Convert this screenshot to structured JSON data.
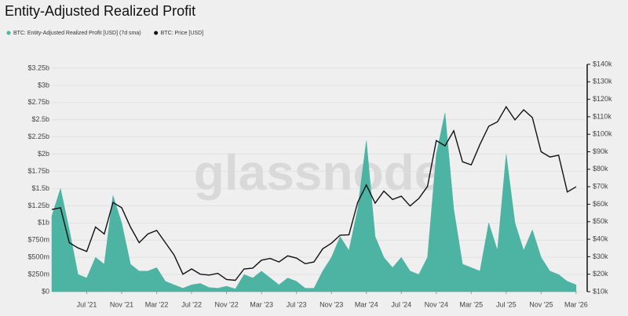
{
  "chart_data": {
    "type": "area-line",
    "title": "Entity-Adjusted Realized Profit",
    "watermark": "glassnode",
    "x": [
      "2021-03",
      "2021-04",
      "2021-05",
      "2021-06",
      "2021-07",
      "2021-08",
      "2021-09",
      "2021-10",
      "2021-11",
      "2021-12",
      "2022-01",
      "2022-02",
      "2022-03",
      "2022-04",
      "2022-05",
      "2022-06",
      "2022-07",
      "2022-08",
      "2022-09",
      "2022-10",
      "2022-11",
      "2022-12",
      "2023-01",
      "2023-02",
      "2023-03",
      "2023-04",
      "2023-05",
      "2023-06",
      "2023-07",
      "2023-08",
      "2023-09",
      "2023-10",
      "2023-11",
      "2023-12",
      "2024-01",
      "2024-02",
      "2024-03",
      "2024-04",
      "2024-05",
      "2024-06",
      "2024-07",
      "2024-08",
      "2024-09",
      "2024-10",
      "2024-11",
      "2024-12",
      "2025-01",
      "2025-02",
      "2025-03",
      "2025-04",
      "2025-05",
      "2025-06",
      "2025-07",
      "2025-08",
      "2025-09",
      "2025-10",
      "2025-11",
      "2025-12",
      "2026-01",
      "2026-02",
      "2026-03"
    ],
    "series": [
      {
        "name": "BTC: Entity-Adjusted Realized Profit [USD] (7d sma)",
        "color": "#4db3a2",
        "values": [
          1100000000,
          1500000000,
          900000000,
          250000000,
          200000000,
          500000000,
          400000000,
          1400000000,
          1000000000,
          400000000,
          300000000,
          300000000,
          350000000,
          150000000,
          100000000,
          50000000,
          100000000,
          120000000,
          60000000,
          50000000,
          80000000,
          40000000,
          250000000,
          200000000,
          300000000,
          200000000,
          100000000,
          200000000,
          150000000,
          50000000,
          50000000,
          300000000,
          500000000,
          800000000,
          600000000,
          1200000000,
          2200000000,
          800000000,
          500000000,
          350000000,
          500000000,
          300000000,
          250000000,
          500000000,
          2000000000,
          2600000000,
          1200000000,
          400000000,
          350000000,
          300000000,
          1000000000,
          600000000,
          2000000000,
          1000000000,
          600000000,
          900000000,
          500000000,
          300000000,
          250000000,
          150000000,
          100000000
        ]
      },
      {
        "name": "BTC: Price [USD]",
        "color": "#111111",
        "axis": "y2",
        "values": [
          57000,
          58000,
          38000,
          35000,
          33000,
          47000,
          43000,
          61000,
          58000,
          47000,
          38000,
          43000,
          45000,
          38000,
          31000,
          20000,
          23000,
          20000,
          19500,
          20500,
          17000,
          16500,
          23000,
          23500,
          28000,
          29000,
          27000,
          30500,
          29200,
          26000,
          27000,
          34500,
          37700,
          42300,
          42500,
          61000,
          71000,
          60600,
          67500,
          62700,
          64600,
          59000,
          63300,
          70200,
          96400,
          93400,
          102000,
          84300,
          82500,
          94200,
          104600,
          107100,
          115700,
          108200,
          114000,
          109500,
          90000,
          87000,
          88000,
          67000,
          70000
        ]
      }
    ],
    "xlim": [
      "2021-03",
      "2026-04"
    ],
    "xticks": [
      {
        "value": "2021-07",
        "label": "Jul '21"
      },
      {
        "value": "2021-11",
        "label": "Nov '21"
      },
      {
        "value": "2022-03",
        "label": "Mar '22"
      },
      {
        "value": "2022-07",
        "label": "Jul '22"
      },
      {
        "value": "2022-11",
        "label": "Nov '22"
      },
      {
        "value": "2023-03",
        "label": "Mar '23"
      },
      {
        "value": "2023-07",
        "label": "Jul '23"
      },
      {
        "value": "2023-11",
        "label": "Nov '23"
      },
      {
        "value": "2024-03",
        "label": "Mar '24"
      },
      {
        "value": "2024-07",
        "label": "Jul '24"
      },
      {
        "value": "2024-11",
        "label": "Nov '24"
      },
      {
        "value": "2025-03",
        "label": "Mar '25"
      },
      {
        "value": "2025-07",
        "label": "Jul '25"
      },
      {
        "value": "2025-11",
        "label": "Nov '25"
      },
      {
        "value": "2026-03",
        "label": "Mar '26"
      }
    ],
    "ylim": [
      0,
      3250000000
    ],
    "yticks": [
      {
        "value": 0,
        "label": "$0"
      },
      {
        "value": 250000000,
        "label": "$250m"
      },
      {
        "value": 500000000,
        "label": "$500m"
      },
      {
        "value": 750000000,
        "label": "$750m"
      },
      {
        "value": 1000000000,
        "label": "$1b"
      },
      {
        "value": 1250000000,
        "label": "$1.25b"
      },
      {
        "value": 1500000000,
        "label": "$1.5b"
      },
      {
        "value": 1750000000,
        "label": "$1.75b"
      },
      {
        "value": 2000000000,
        "label": "$2b"
      },
      {
        "value": 2250000000,
        "label": "$2.25b"
      },
      {
        "value": 2500000000,
        "label": "$2.5b"
      },
      {
        "value": 2750000000,
        "label": "$2.75b"
      },
      {
        "value": 3000000000,
        "label": "$3b"
      },
      {
        "value": 3250000000,
        "label": "$3.25b"
      }
    ],
    "y2lim": [
      10000,
      140000
    ],
    "y2ticks": [
      {
        "value": 10000,
        "label": "$10k"
      },
      {
        "value": 20000,
        "label": "$20k"
      },
      {
        "value": 30000,
        "label": "$30k"
      },
      {
        "value": 40000,
        "label": "$40k"
      },
      {
        "value": 50000,
        "label": "$50k"
      },
      {
        "value": 60000,
        "label": "$60k"
      },
      {
        "value": 70000,
        "label": "$70k"
      },
      {
        "value": 80000,
        "label": "$80k"
      },
      {
        "value": 90000,
        "label": "$90k"
      },
      {
        "value": 100000,
        "label": "$100k"
      },
      {
        "value": 110000,
        "label": "$110k"
      },
      {
        "value": 120000,
        "label": "$120k"
      },
      {
        "value": 130000,
        "label": "$130k"
      },
      {
        "value": 140000,
        "label": "$140k"
      }
    ],
    "grid": true
  }
}
